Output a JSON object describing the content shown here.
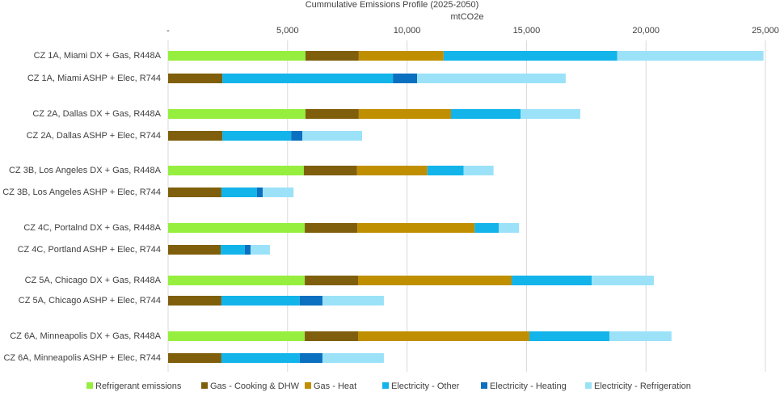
{
  "chart_data": {
    "type": "stacked-barh",
    "title": "Cummulative Emissions Profile (2025-2050)",
    "xlabel": "mtCO2e",
    "categories": [
      "CZ 1A, Miami DX + Gas, R448A",
      "CZ 1A, Miami ASHP + Elec, R744",
      "CZ 2A, Dallas DX + Gas, R448A",
      "CZ 2A, Dallas ASHP + Elec, R744",
      "CZ 3B, Los Angeles DX + Gas, R448A",
      "CZ 3B, Los Angeles ASHP + Elec, R744",
      "CZ 4C, Portalnd DX + Gas, R448A",
      "CZ 4C, Portland ASHP + Elec, R744",
      "CZ 5A, Chicago DX + Gas, R448A",
      "CZ 5A, Chicago ASHP + Elec, R744",
      "CZ 6A, Minneapolis DX + Gas, R448A",
      "CZ 6A, Minneapolis ASHP + Elec, R744"
    ],
    "series": [
      {
        "name": "Refrigerant emissions",
        "color": "#96ee3f",
        "values": [
          5750,
          0,
          5750,
          0,
          5680,
          0,
          5720,
          0,
          5720,
          0,
          5720,
          0
        ]
      },
      {
        "name": "Gas - Cooking & DHW",
        "color": "#7f5f0c",
        "values": [
          2230,
          2270,
          2230,
          2270,
          2230,
          2230,
          2200,
          2200,
          2230,
          2230,
          2230,
          2230
        ]
      },
      {
        "name": "Gas - Heat",
        "color": "#bf8f00",
        "values": [
          3550,
          0,
          3860,
          0,
          2940,
          0,
          4910,
          0,
          6430,
          0,
          7170,
          0
        ]
      },
      {
        "name": "Electricity - Other",
        "color": "#12b4ea",
        "values": [
          7270,
          7140,
          2910,
          2880,
          1520,
          1490,
          1010,
          1010,
          3350,
          3280,
          3350,
          3280
        ]
      },
      {
        "name": "Electricity - Heating",
        "color": "#0a70bf",
        "values": [
          0,
          1010,
          0,
          470,
          0,
          240,
          0,
          240,
          0,
          950,
          0,
          950
        ]
      },
      {
        "name": "Electricity - Refrigeration",
        "color": "#9be2f8",
        "values": [
          6120,
          6220,
          2500,
          2500,
          1250,
          1290,
          850,
          810,
          2600,
          2570,
          2600,
          2570
        ]
      }
    ],
    "xlim": [
      0,
      25000
    ],
    "xticks": [
      {
        "value": 0,
        "label": "-"
      },
      {
        "value": 5000,
        "label": "5,000"
      },
      {
        "value": 10000,
        "label": "10,000"
      },
      {
        "value": 15000,
        "label": "15,000"
      },
      {
        "value": 20000,
        "label": "20,000"
      },
      {
        "value": 25000,
        "label": "25,000"
      }
    ],
    "grid": true,
    "legend": "bottom"
  }
}
